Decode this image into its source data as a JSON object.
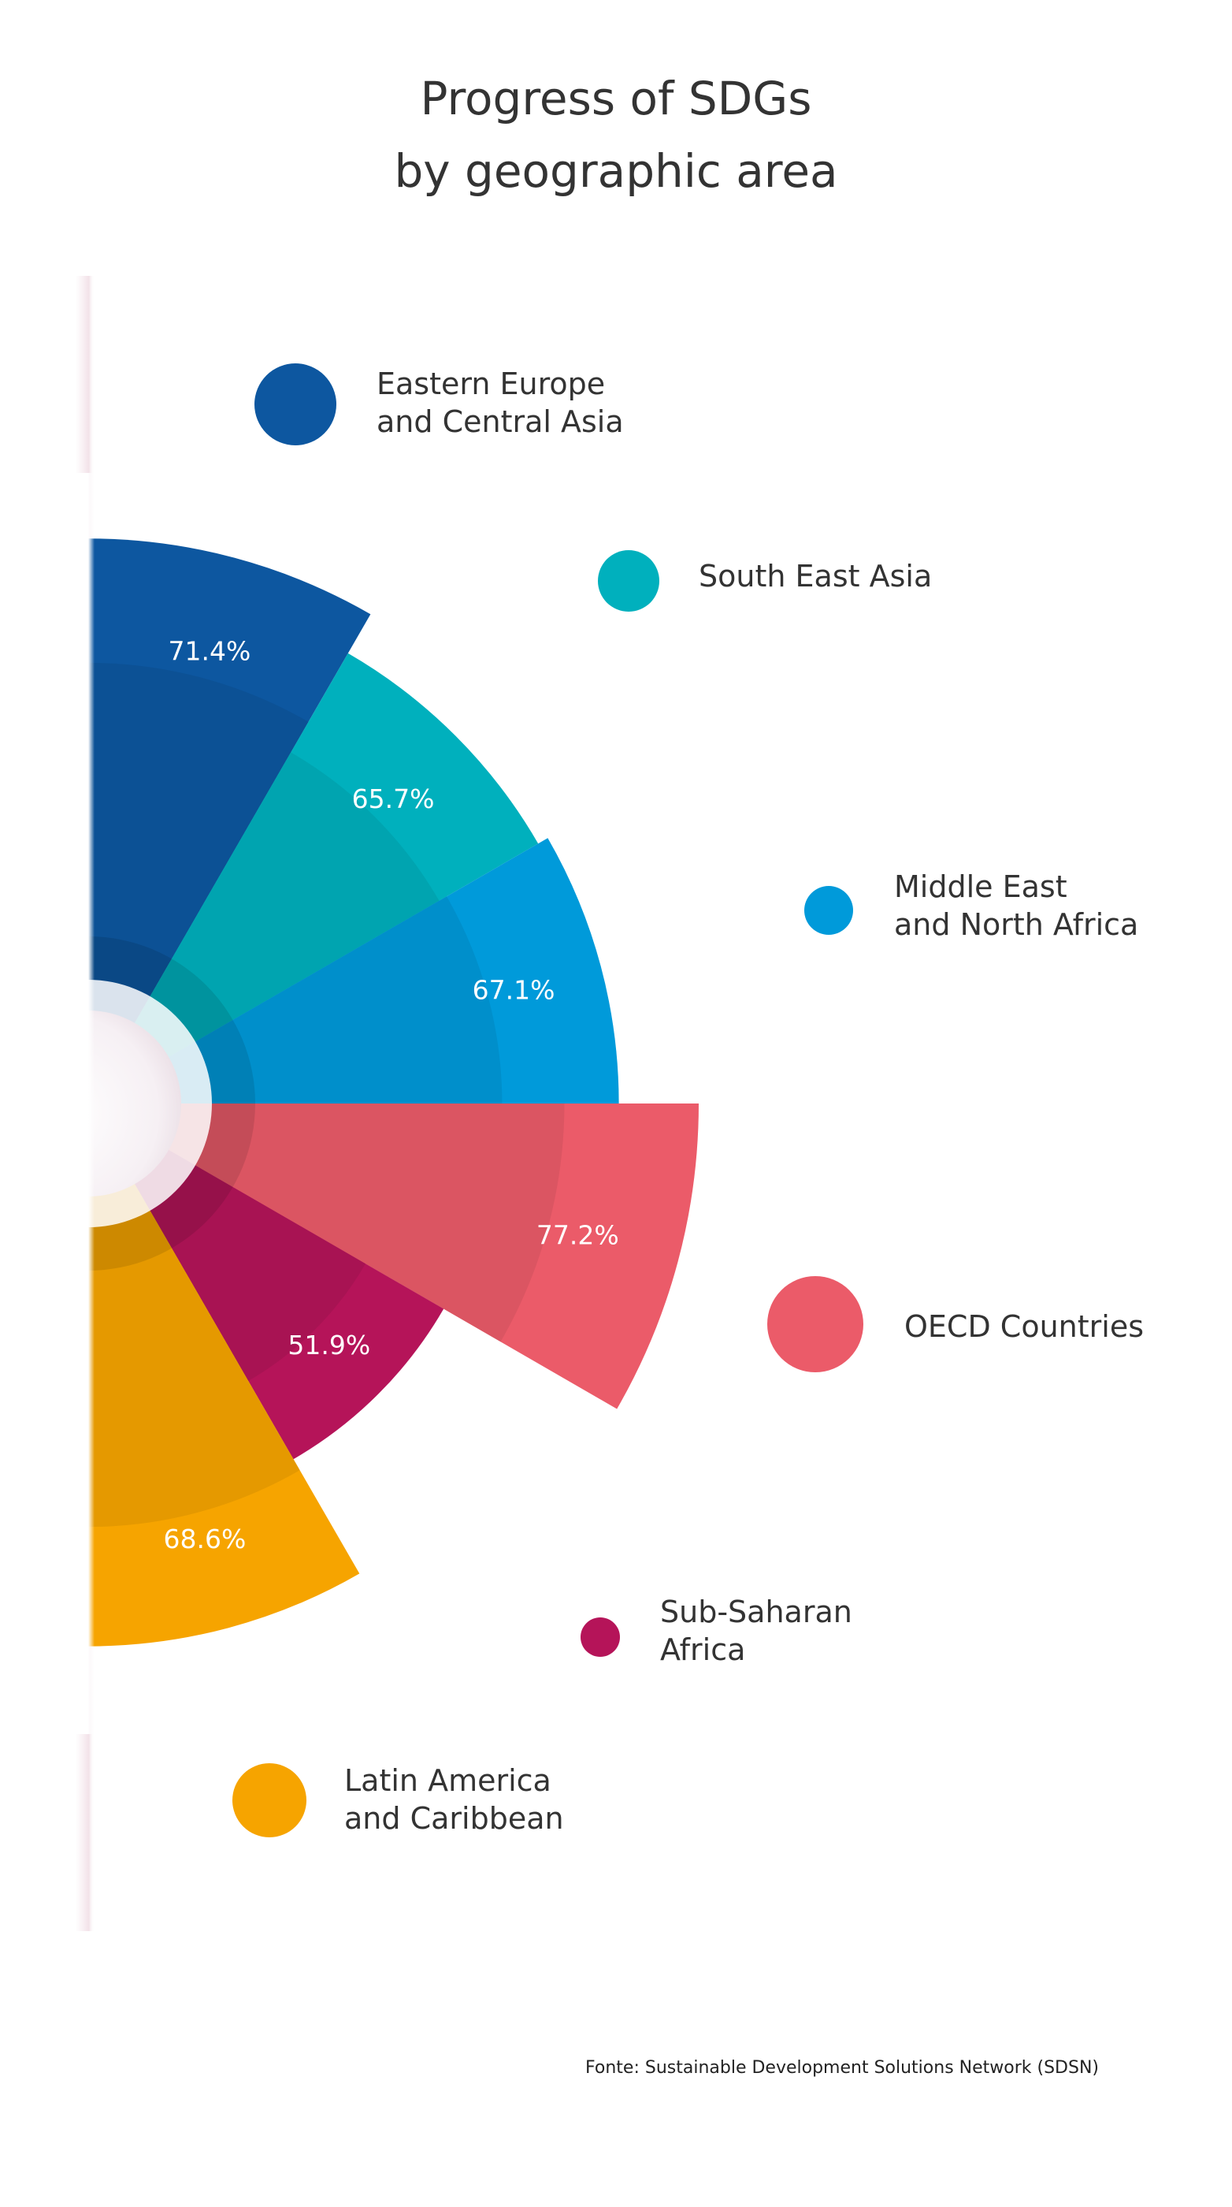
{
  "chart_data": {
    "type": "pie",
    "subtype": "half-rose",
    "title_lines": [
      "Progress of SDGs",
      "by geographic area"
    ],
    "source": "Fonte: Sustainable Development Solutions Network (SDSN)",
    "series": [
      {
        "name_lines": [
          "Eastern Europe",
          "and Central Asia"
        ],
        "value": 71.4,
        "label": "71.4%",
        "color": "#0d57a0"
      },
      {
        "name_lines": [
          "South East Asia"
        ],
        "value": 65.7,
        "label": "65.7%",
        "color": "#00b0bd"
      },
      {
        "name_lines": [
          "Middle East",
          "and North Africa"
        ],
        "value": 67.1,
        "label": "67.1%",
        "color": "#009ada"
      },
      {
        "name_lines": [
          "OECD Countries"
        ],
        "value": 77.2,
        "label": "77.2%",
        "color": "#eb5b69"
      },
      {
        "name_lines": [
          "Sub-Saharan",
          "Africa"
        ],
        "value": 51.9,
        "label": "51.9%",
        "color": "#b51459"
      },
      {
        "name_lines": [
          "Latin America",
          "and Caribbean"
        ],
        "value": 68.6,
        "label": "68.6%",
        "color": "#f6a400"
      }
    ],
    "value_unit": "%",
    "legend_position": "right"
  }
}
